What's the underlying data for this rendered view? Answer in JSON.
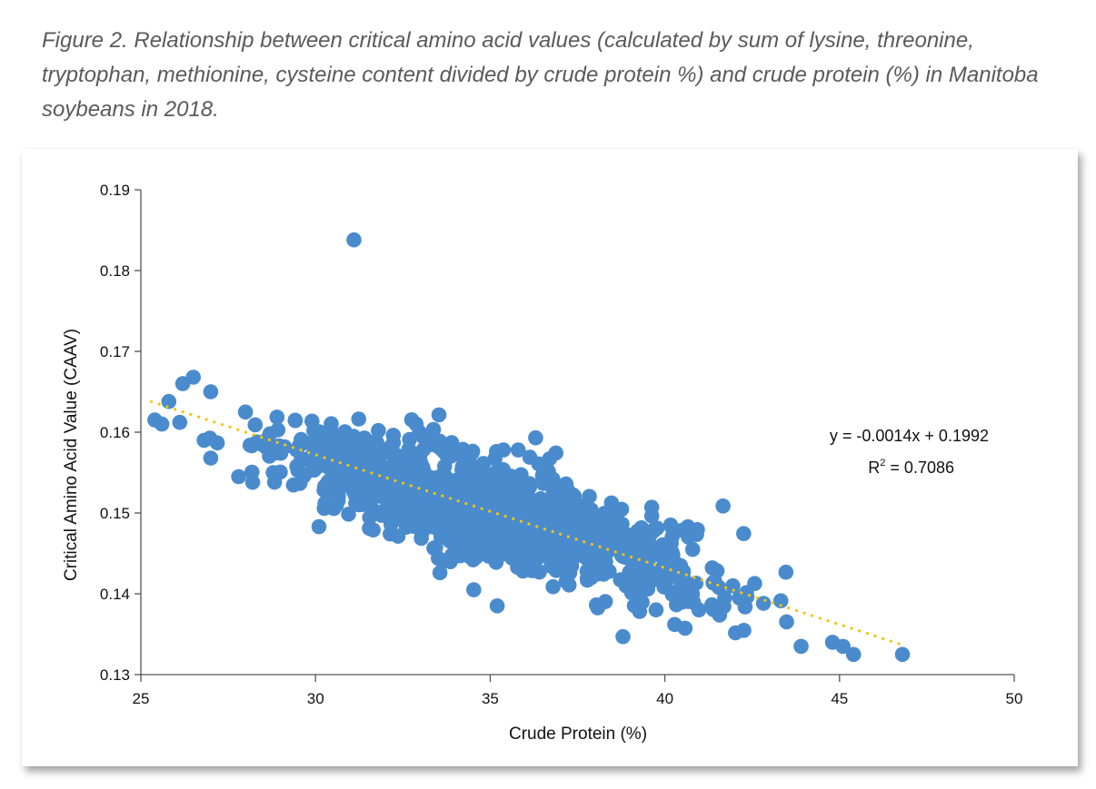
{
  "figure": {
    "caption": "Figure 2. Relationship between critical amino acid values (calculated by sum of lysine, threonine, tryptophan, methionine, cysteine content divided by crude protein %) and crude protein (%) in Manitoba soybeans in 2018."
  },
  "chart_data": {
    "type": "scatter",
    "xlabel": "Crude Protein (%)",
    "ylabel": "Critical Amino Acid Value (CAAV)",
    "xlim": [
      25,
      50
    ],
    "ylim": [
      0.13,
      0.19
    ],
    "x_ticks": [
      25,
      30,
      35,
      40,
      45,
      50
    ],
    "y_ticks": [
      0.13,
      0.14,
      0.15,
      0.16,
      0.17,
      0.18,
      0.19
    ],
    "x_tick_labels": [
      "25",
      "30",
      "35",
      "40",
      "45",
      "50"
    ],
    "y_tick_labels": [
      "0.13",
      "0.14",
      "0.15",
      "0.16",
      "0.17",
      "0.18",
      "0.19"
    ],
    "grid": false,
    "point_color": "#4a8bcd",
    "trendline": {
      "type": "linear",
      "slope": -0.0014,
      "intercept": 0.1992,
      "x_range": [
        25.3,
        46.7
      ],
      "color": "#f2c40f",
      "style": "dotted",
      "equation_label": "y = -0.0014x + 0.1992",
      "r2_prefix": "R",
      "r2_sup": "2",
      "r2_suffix": " = 0.7086",
      "r2": 0.7086
    },
    "outliers": [
      {
        "x": 31.1,
        "y": 0.1838
      },
      {
        "x": 36.3,
        "y": 0.1593
      },
      {
        "x": 35.8,
        "y": 0.1578
      },
      {
        "x": 36.7,
        "y": 0.1567
      },
      {
        "x": 31.8,
        "y": 0.1602
      },
      {
        "x": 30.1,
        "y": 0.1483
      },
      {
        "x": 35.2,
        "y": 0.1385
      },
      {
        "x": 38.8,
        "y": 0.1347
      },
      {
        "x": 46.8,
        "y": 0.1325
      },
      {
        "x": 45.4,
        "y": 0.1325
      },
      {
        "x": 45.1,
        "y": 0.1335
      },
      {
        "x": 44.8,
        "y": 0.134
      },
      {
        "x": 43.9,
        "y": 0.1335
      },
      {
        "x": 25.4,
        "y": 0.1615
      },
      {
        "x": 25.6,
        "y": 0.161
      },
      {
        "x": 25.8,
        "y": 0.1638
      },
      {
        "x": 26.5,
        "y": 0.1668
      },
      {
        "x": 26.2,
        "y": 0.166
      },
      {
        "x": 27.0,
        "y": 0.165
      },
      {
        "x": 27.0,
        "y": 0.1568
      },
      {
        "x": 27.8,
        "y": 0.1545
      },
      {
        "x": 28.2,
        "y": 0.1538
      }
    ],
    "cluster": {
      "n": 1150,
      "seed": 7,
      "x_mean": 35.0,
      "x_sd": 3.1,
      "x_range": [
        26.0,
        43.5
      ],
      "residual_sd": 0.0032
    }
  }
}
